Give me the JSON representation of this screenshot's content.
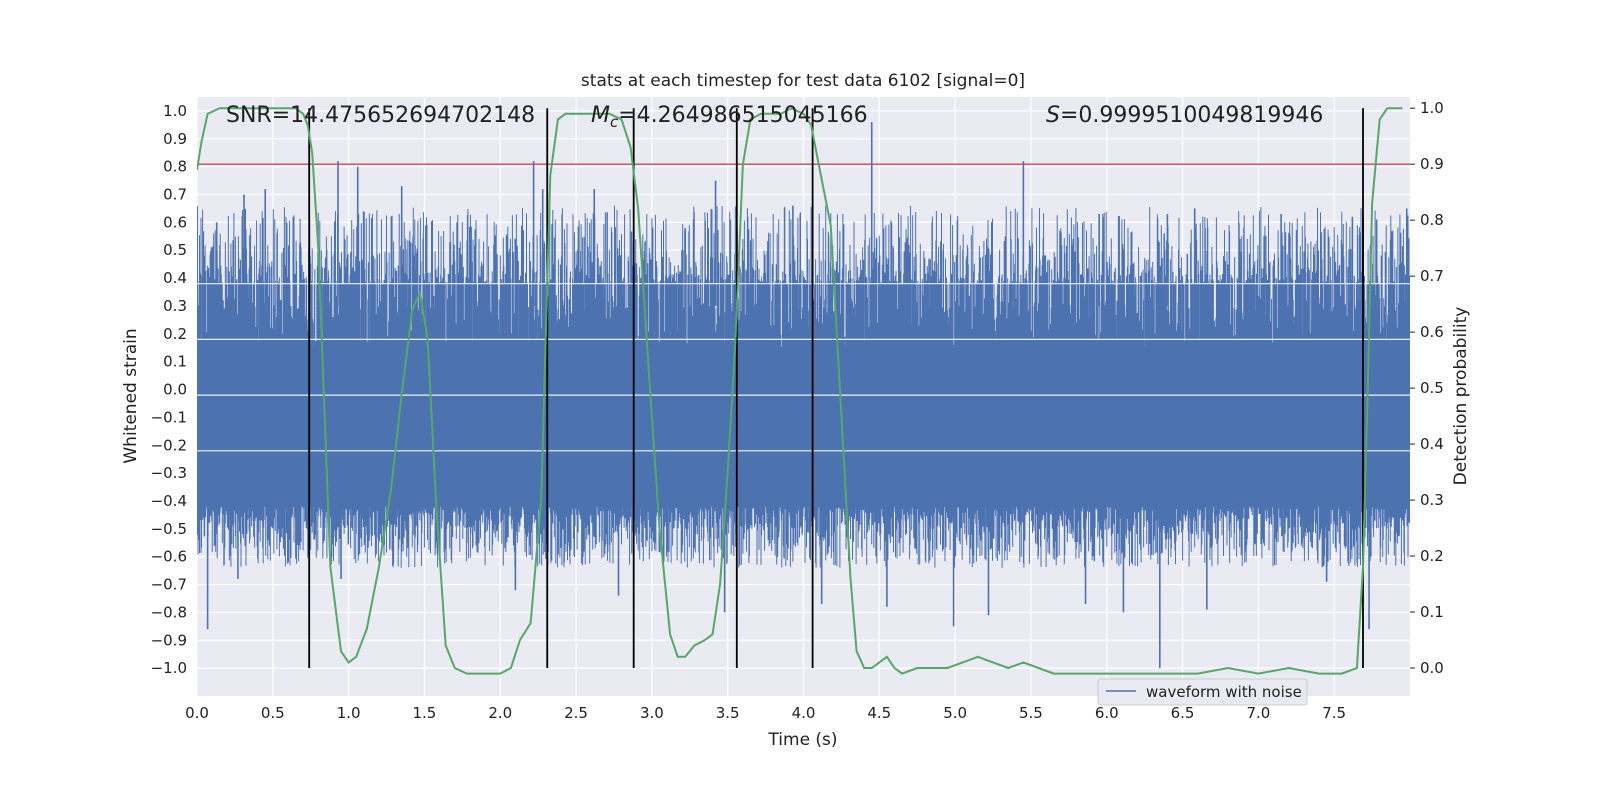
{
  "chart_data": {
    "type": "line",
    "title": "stats at each timestep for test data 6102 [signal=0]",
    "xlabel": "Time (s)",
    "ylabel": "Whitened strain",
    "y2label": "Detection probability",
    "xlim": [
      0.0,
      8.0
    ],
    "ylim": [
      -1.1,
      1.05
    ],
    "y2lim": [
      -0.05,
      1.02
    ],
    "x_ticks": [
      "0.0",
      "0.5",
      "1.0",
      "1.5",
      "2.0",
      "2.5",
      "3.0",
      "3.5",
      "4.0",
      "4.5",
      "5.0",
      "5.5",
      "6.0",
      "6.5",
      "7.0",
      "7.5"
    ],
    "y_ticks": [
      "1.0",
      "0.9",
      "0.8",
      "0.7",
      "0.6",
      "0.5",
      "0.4",
      "0.3",
      "0.2",
      "0.1",
      "0.0",
      "-0.1",
      "-0.2",
      "-0.3",
      "-0.4",
      "-0.5",
      "-0.6",
      "-0.7",
      "-0.8",
      "-0.9",
      "-1.0"
    ],
    "y2_ticks": [
      "1.0",
      "0.9",
      "0.8",
      "0.7",
      "0.6",
      "0.5",
      "0.4",
      "0.3",
      "0.2",
      "0.1",
      "0.0"
    ],
    "grid": true,
    "legend": {
      "position": "lower-right",
      "entries": [
        "waveform with noise"
      ]
    },
    "annotations": {
      "snr": "SNR=14.475652694702148",
      "mc_symbol": "M",
      "mc_sub": "c",
      "mc_value": "=4.264986515045166",
      "s_symbol": "S",
      "s_value": "=0.9999510049819946"
    },
    "threshold": {
      "y2": 0.9,
      "color": "#c44e52"
    },
    "vertical_lines_x": [
      0.74,
      2.31,
      2.88,
      3.56,
      4.06,
      7.69
    ],
    "colors": {
      "waveform": "#4c72b0",
      "probability": "#55a868",
      "vlines": "#000000",
      "background": "#eaeaf2",
      "grid": "#ffffff"
    },
    "waveform": {
      "name": "waveform with noise",
      "dense_band_y": [
        -0.42,
        0.38
      ],
      "peaks_x": [
        0.05,
        0.13,
        0.31,
        0.45,
        0.93,
        1.06,
        1.35,
        2.22,
        2.28,
        2.62,
        3.22,
        3.42,
        3.93,
        4.45,
        4.58,
        5.45,
        5.95,
        6.4,
        6.58,
        7.15,
        7.62,
        7.78
      ],
      "peaks_y": [
        0.48,
        0.6,
        0.7,
        0.72,
        0.82,
        0.8,
        0.73,
        0.82,
        0.72,
        0.72,
        0.58,
        0.75,
        0.66,
        0.96,
        0.6,
        0.82,
        0.63,
        0.63,
        0.65,
        0.63,
        0.62,
        0.61
      ],
      "troughs_x": [
        0.07,
        0.27,
        0.95,
        2.1,
        2.31,
        2.78,
        3.48,
        4.12,
        4.55,
        4.99,
        5.22,
        5.86,
        6.11,
        6.35,
        6.66,
        7.45,
        7.73
      ],
      "troughs_y": [
        -0.86,
        -0.68,
        -0.68,
        -0.72,
        -0.78,
        -0.74,
        -0.8,
        -0.77,
        -0.78,
        -0.85,
        -0.81,
        -0.77,
        -0.8,
        -1.0,
        -0.79,
        -0.69,
        -0.86
      ]
    },
    "probability": {
      "x": [
        0.0,
        0.03,
        0.07,
        0.15,
        0.25,
        0.4,
        0.55,
        0.65,
        0.7,
        0.73,
        0.76,
        0.8,
        0.88,
        0.95,
        1.0,
        1.05,
        1.12,
        1.2,
        1.28,
        1.35,
        1.42,
        1.47,
        1.52,
        1.58,
        1.64,
        1.7,
        1.78,
        1.9,
        2.0,
        2.07,
        2.13,
        2.2,
        2.27,
        2.33,
        2.38,
        2.43,
        2.5,
        2.6,
        2.72,
        2.8,
        2.86,
        2.91,
        2.98,
        3.05,
        3.12,
        3.17,
        3.22,
        3.28,
        3.35,
        3.4,
        3.45,
        3.5,
        3.55,
        3.6,
        3.65,
        3.72,
        3.78,
        3.85,
        3.92,
        4.0,
        4.05,
        4.1,
        4.18,
        4.25,
        4.31,
        4.35,
        4.4,
        4.45,
        4.5,
        4.55,
        4.6,
        4.65,
        4.75,
        4.85,
        4.95,
        5.05,
        5.15,
        5.25,
        5.35,
        5.45,
        5.55,
        5.65,
        5.8,
        6.0,
        6.2,
        6.4,
        6.6,
        6.8,
        7.0,
        7.2,
        7.4,
        7.55,
        7.65,
        7.69,
        7.72,
        7.75,
        7.8,
        7.85,
        7.95
      ],
      "y": [
        0.89,
        0.94,
        0.99,
        1.0,
        1.0,
        1.0,
        1.0,
        1.0,
        0.99,
        0.97,
        0.92,
        0.75,
        0.18,
        0.03,
        0.01,
        0.02,
        0.07,
        0.18,
        0.32,
        0.49,
        0.64,
        0.67,
        0.59,
        0.28,
        0.04,
        0.0,
        -0.01,
        -0.01,
        -0.01,
        0.0,
        0.05,
        0.08,
        0.3,
        0.88,
        0.98,
        0.99,
        0.99,
        0.99,
        0.99,
        0.98,
        0.93,
        0.82,
        0.53,
        0.25,
        0.06,
        0.02,
        0.02,
        0.04,
        0.05,
        0.06,
        0.15,
        0.35,
        0.58,
        0.9,
        0.98,
        0.99,
        0.99,
        0.99,
        1.0,
        0.99,
        0.97,
        0.9,
        0.79,
        0.45,
        0.16,
        0.03,
        0.0,
        0.0,
        0.01,
        0.02,
        0.0,
        -0.01,
        0.0,
        0.0,
        0.0,
        0.01,
        0.02,
        0.01,
        0.0,
        0.01,
        0.0,
        -0.01,
        -0.01,
        -0.01,
        -0.01,
        -0.01,
        -0.01,
        0.0,
        -0.01,
        0.0,
        -0.01,
        -0.01,
        0.0,
        0.18,
        0.48,
        0.83,
        0.98,
        1.0,
        1.0
      ]
    }
  }
}
